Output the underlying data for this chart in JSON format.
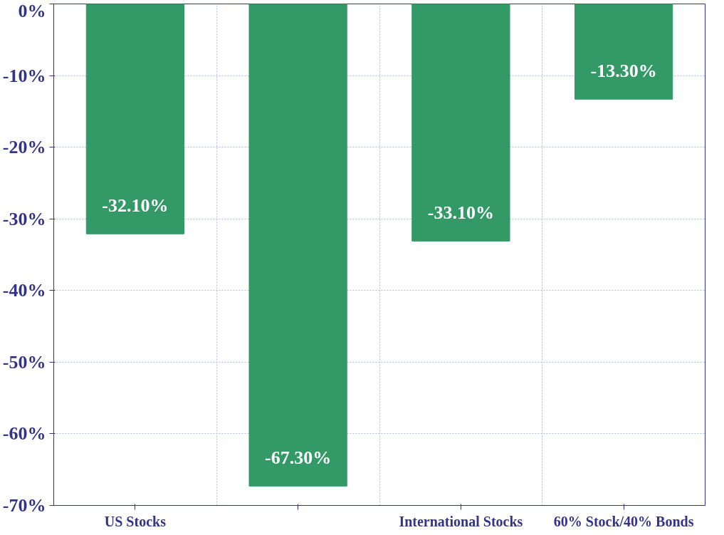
{
  "chart_data": {
    "type": "bar",
    "categories": [
      "US Stocks",
      null,
      "International Stocks",
      "60% Stock/40% Bonds"
    ],
    "values": [
      -32.1,
      -67.3,
      -33.1,
      -13.3
    ],
    "value_labels": [
      "-32.10%",
      "-67.30%",
      "-33.10%",
      "-13.30%"
    ],
    "color": "#339966",
    "ylim": [
      -70,
      0
    ],
    "yticks": [
      {
        "value": 0,
        "label": "0%"
      },
      {
        "value": -10,
        "label": "-10%"
      },
      {
        "value": -20,
        "label": "-20%"
      },
      {
        "value": -30,
        "label": "-30%"
      },
      {
        "value": -40,
        "label": "-40%"
      },
      {
        "value": -50,
        "label": "-50%"
      },
      {
        "value": -60,
        "label": "-60%"
      },
      {
        "value": -70,
        "label": "-70%"
      }
    ],
    "grid": true
  }
}
